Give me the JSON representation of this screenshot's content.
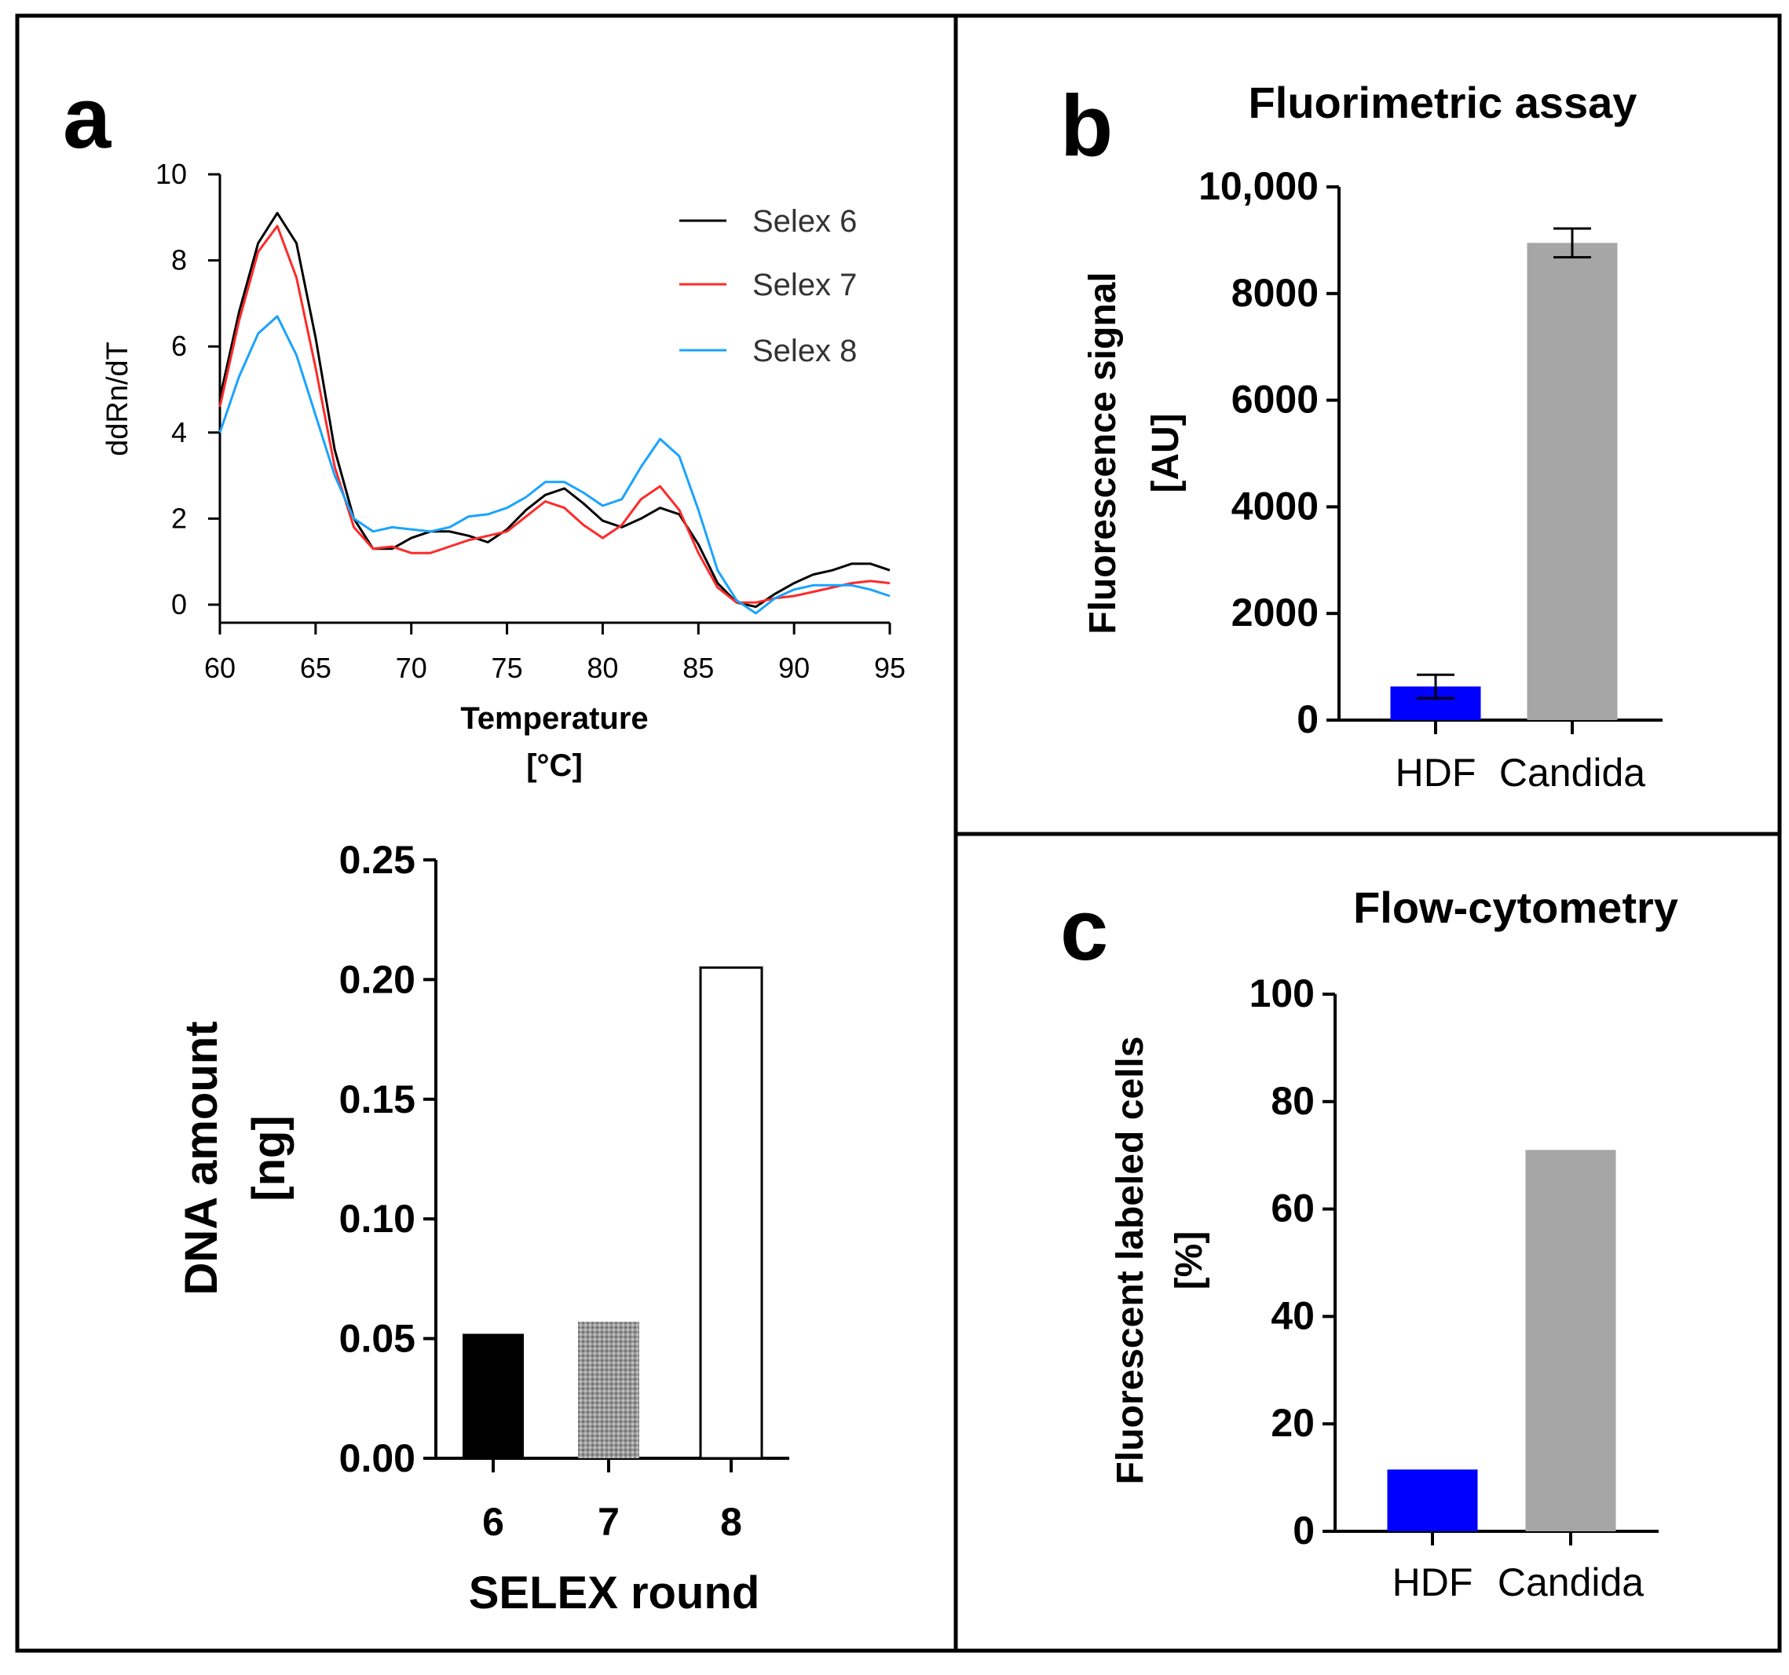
{
  "panels": {
    "a": {
      "letter": "a"
    },
    "b": {
      "letter": "b"
    },
    "c": {
      "letter": "c"
    }
  },
  "chart_data": [
    {
      "id": "melt",
      "type": "line",
      "title": "",
      "xlabel": "Temperature",
      "xunit": "[°C]",
      "ylabel": "ddRn/dT",
      "xlim": [
        60,
        95
      ],
      "ylim": [
        0,
        10
      ],
      "xticks": [
        60,
        65,
        70,
        75,
        80,
        85,
        90,
        95
      ],
      "yticks": [
        0,
        2,
        4,
        6,
        8,
        10
      ],
      "legend_position": "top-right",
      "series": [
        {
          "name": "Selex 6",
          "color": "#000000",
          "x": [
            60,
            61,
            62,
            63,
            64,
            65,
            66,
            67,
            68,
            69,
            70,
            71,
            72,
            73,
            74,
            75,
            76,
            77,
            78,
            79,
            80,
            81,
            82,
            83,
            84,
            85,
            86,
            87,
            88,
            89,
            90,
            91,
            92,
            93,
            94,
            95
          ],
          "y": [
            4.8,
            6.8,
            8.4,
            9.1,
            8.4,
            6.2,
            3.6,
            2.0,
            1.3,
            1.3,
            1.55,
            1.7,
            1.7,
            1.6,
            1.45,
            1.75,
            2.2,
            2.55,
            2.7,
            2.35,
            1.95,
            1.8,
            2.0,
            2.25,
            2.1,
            1.4,
            0.5,
            0.05,
            -0.05,
            0.25,
            0.5,
            0.7,
            0.8,
            0.95,
            0.95,
            0.8
          ]
        },
        {
          "name": "Selex 7",
          "color": "#ff2a2a",
          "x": [
            60,
            61,
            62,
            63,
            64,
            65,
            66,
            67,
            68,
            69,
            70,
            71,
            72,
            73,
            74,
            75,
            76,
            77,
            78,
            79,
            80,
            81,
            82,
            83,
            84,
            85,
            86,
            87,
            88,
            89,
            90,
            91,
            92,
            93,
            94,
            95
          ],
          "y": [
            4.6,
            6.6,
            8.2,
            8.8,
            7.6,
            5.5,
            3.2,
            1.8,
            1.3,
            1.35,
            1.2,
            1.2,
            1.35,
            1.5,
            1.6,
            1.7,
            2.05,
            2.4,
            2.25,
            1.85,
            1.55,
            1.85,
            2.45,
            2.75,
            2.2,
            1.2,
            0.4,
            0.05,
            0.05,
            0.15,
            0.2,
            0.3,
            0.4,
            0.5,
            0.55,
            0.5
          ]
        },
        {
          "name": "Selex 8",
          "color": "#1aa3ff",
          "x": [
            60,
            61,
            62,
            63,
            64,
            65,
            66,
            67,
            68,
            69,
            70,
            71,
            72,
            73,
            74,
            75,
            76,
            77,
            78,
            79,
            80,
            81,
            82,
            83,
            84,
            85,
            86,
            87,
            88,
            89,
            90,
            91,
            92,
            93,
            94,
            95
          ],
          "y": [
            4.0,
            5.3,
            6.3,
            6.7,
            5.8,
            4.4,
            3.0,
            2.0,
            1.7,
            1.8,
            1.75,
            1.7,
            1.8,
            2.05,
            2.1,
            2.25,
            2.5,
            2.85,
            2.85,
            2.6,
            2.3,
            2.45,
            3.2,
            3.85,
            3.45,
            2.2,
            0.8,
            0.1,
            -0.2,
            0.15,
            0.35,
            0.45,
            0.45,
            0.45,
            0.35,
            0.2
          ]
        }
      ]
    },
    {
      "id": "dna",
      "type": "bar",
      "title": "",
      "xlabel": "SELEX round",
      "ylabel": "DNA amount",
      "yunit": "[ng]",
      "ylim": [
        0,
        0.25
      ],
      "yticks": [
        "0.00",
        "0.05",
        "0.10",
        "0.15",
        "0.20",
        "0.25"
      ],
      "categories": [
        "6",
        "7",
        "8"
      ],
      "values": [
        0.052,
        0.057,
        0.205
      ],
      "fills": [
        "solid-black",
        "dotted-gray",
        "white"
      ]
    },
    {
      "id": "fluor",
      "type": "bar",
      "title": "Fluorimetric assay",
      "xlabel": "",
      "ylabel": "Fluorescence signal",
      "yunit": "[AU]",
      "ylim": [
        0,
        10000
      ],
      "yticks": [
        "0",
        "2000",
        "4000",
        "6000",
        "8000",
        "10,000"
      ],
      "categories": [
        "HDF",
        "Candida"
      ],
      "values": [
        630,
        8950
      ],
      "errors": [
        220,
        270
      ],
      "colors": [
        "#0000ff",
        "#a6a6a6"
      ]
    },
    {
      "id": "flow",
      "type": "bar",
      "title": "Flow-cytometry",
      "xlabel": "",
      "ylabel": "Fluorescent labeled cells",
      "yunit": "[%]",
      "ylim": [
        0,
        100
      ],
      "yticks": [
        "0",
        "20",
        "40",
        "60",
        "80",
        "100"
      ],
      "categories": [
        "HDF",
        "Candida"
      ],
      "values": [
        11.5,
        71
      ],
      "colors": [
        "#0000ff",
        "#a6a6a6"
      ]
    }
  ]
}
